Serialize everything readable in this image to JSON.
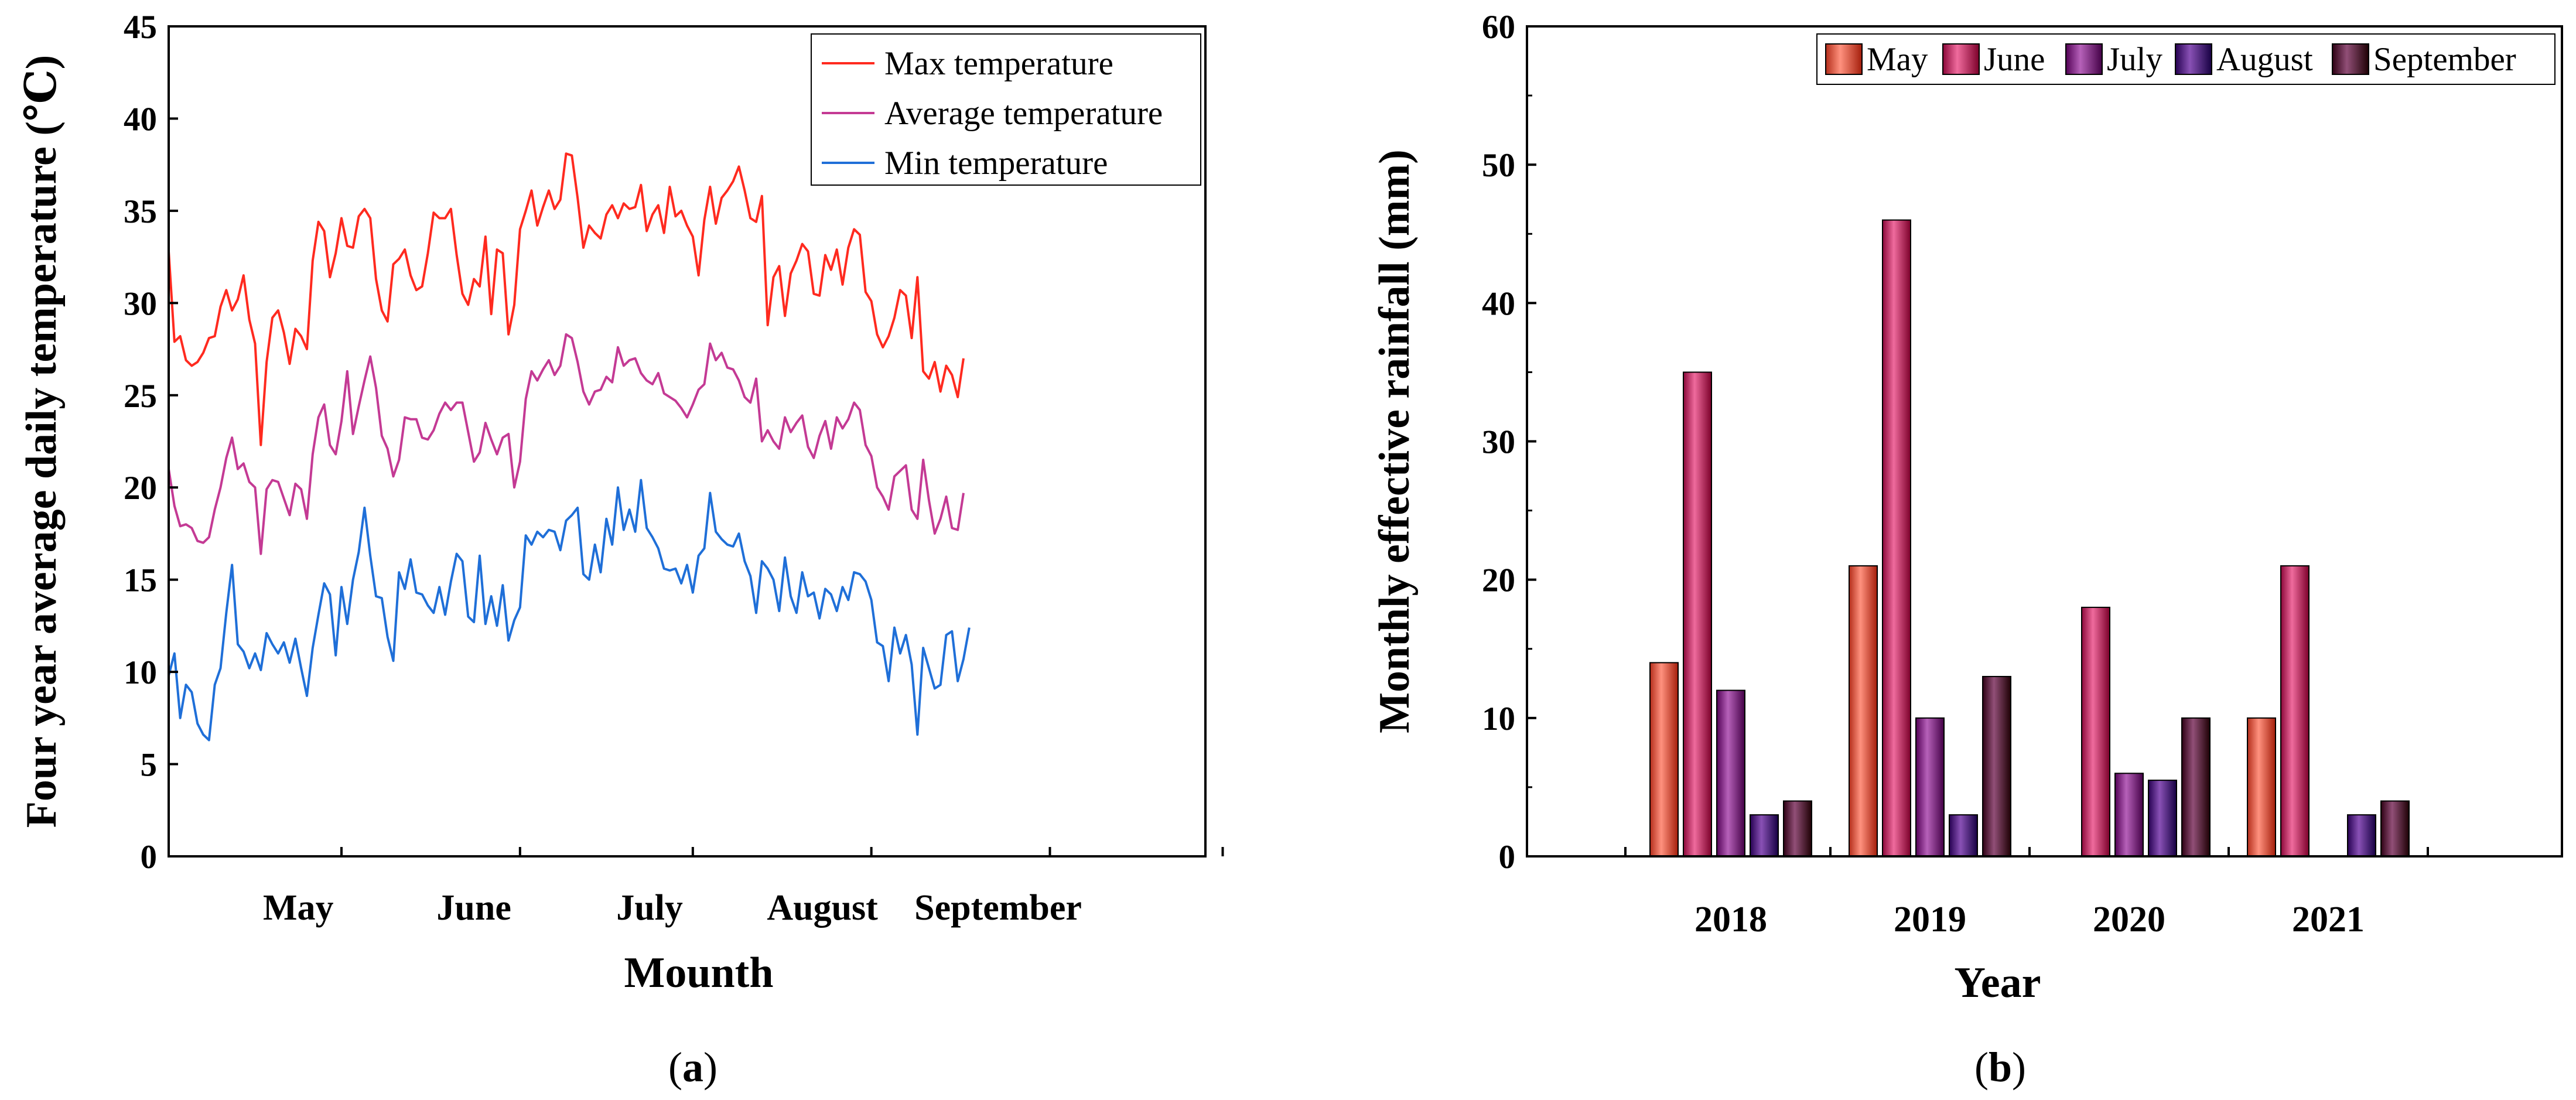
{
  "panels": {
    "a": {
      "caption_label": "a"
    },
    "b": {
      "caption_label": "b"
    }
  },
  "chart_data": [
    {
      "id": "a",
      "type": "line",
      "title": "",
      "xlabel": "Mounth",
      "ylabel": "Four year average daily temperature (℃)",
      "ylim": [
        0,
        45
      ],
      "yticks": [
        0,
        5,
        10,
        15,
        20,
        25,
        30,
        35,
        40,
        45
      ],
      "xlim": [
        0,
        180
      ],
      "x_month_labels": [
        "May",
        "June",
        "July",
        "August",
        "September"
      ],
      "x_month_positions": [
        22.5,
        53,
        83.5,
        113.5,
        144
      ],
      "x_minor_ticks": [
        30,
        61,
        91,
        122,
        153,
        183
      ],
      "legend": {
        "placement": "top-right",
        "entries": [
          "Max temperature",
          "Average temperature",
          "Min temperature"
        ]
      },
      "colors": {
        "max": "#ff2a1f",
        "avg": "#c43a94",
        "min": "#1f6fd8"
      },
      "series": [
        {
          "name": "Max temperature",
          "values": [
            32.8,
            27.9,
            28.2,
            26.9,
            26.6,
            26.8,
            27.3,
            28.1,
            28.2,
            29.8,
            30.7,
            29.6,
            30.2,
            31.5,
            29.1,
            27.8,
            22.3,
            26.8,
            29.2,
            29.6,
            28.4,
            26.7,
            28.6,
            28.2,
            27.5,
            32.3,
            34.4,
            33.9,
            31.4,
            32.7,
            34.6,
            33.1,
            33.0,
            34.7,
            35.1,
            34.6,
            31.3,
            29.6,
            29.0,
            32.1,
            32.4,
            32.9,
            31.5,
            30.7,
            30.9,
            32.7,
            34.9,
            34.6,
            34.6,
            35.1,
            32.6,
            30.5,
            29.9,
            31.3,
            30.9,
            33.6,
            29.4,
            32.9,
            32.7,
            28.3,
            29.9,
            34.0,
            35.0,
            36.1,
            34.2,
            35.2,
            36.1,
            35.1,
            35.6,
            38.1,
            38.0,
            35.7,
            33.0,
            34.2,
            33.8,
            33.5,
            34.8,
            35.3,
            34.6,
            35.4,
            35.1,
            35.2,
            36.4,
            33.9,
            34.8,
            35.3,
            33.8,
            36.3,
            34.7,
            35.0,
            34.2,
            33.6,
            31.5,
            34.5,
            36.3,
            34.3,
            35.7,
            36.1,
            36.6,
            37.4,
            36.1,
            34.6,
            34.4,
            35.8,
            28.8,
            31.4,
            32.0,
            29.3,
            31.6,
            32.3,
            33.2,
            32.8,
            30.5,
            30.4,
            32.6,
            31.8,
            32.9,
            31.0,
            33.0,
            34.0,
            33.7,
            30.6,
            30.1,
            28.3,
            27.6,
            28.2,
            29.2,
            30.7,
            30.4,
            28.1,
            31.4,
            26.3,
            25.9,
            26.8,
            25.2,
            26.6,
            26.1,
            24.9,
            27.0
          ]
        },
        {
          "name": "Average temperature",
          "values": [
            21.0,
            19.0,
            17.9,
            18.0,
            17.8,
            17.1,
            17.0,
            17.3,
            18.8,
            20.0,
            21.6,
            22.7,
            21.0,
            21.3,
            20.3,
            20.0,
            16.4,
            19.9,
            20.4,
            20.3,
            19.4,
            18.5,
            20.2,
            19.9,
            18.3,
            21.8,
            23.8,
            24.5,
            22.3,
            21.8,
            23.6,
            26.3,
            22.9,
            24.4,
            25.8,
            27.1,
            25.4,
            22.8,
            22.1,
            20.6,
            21.5,
            23.8,
            23.7,
            23.7,
            22.7,
            22.6,
            23.1,
            24.0,
            24.6,
            24.2,
            24.6,
            24.6,
            23.0,
            21.4,
            21.9,
            23.5,
            22.6,
            21.8,
            22.7,
            22.9,
            20.0,
            21.4,
            24.8,
            26.3,
            25.8,
            26.4,
            26.9,
            26.1,
            26.6,
            28.3,
            28.1,
            26.8,
            25.2,
            24.5,
            25.2,
            25.3,
            26.0,
            25.7,
            27.6,
            26.6,
            26.9,
            27.0,
            26.2,
            25.8,
            25.6,
            26.2,
            25.1,
            24.9,
            24.7,
            24.3,
            23.8,
            24.5,
            25.3,
            25.6,
            27.8,
            26.9,
            27.3,
            26.5,
            26.4,
            25.8,
            24.9,
            24.6,
            25.9,
            22.5,
            23.1,
            22.5,
            22.1,
            23.8,
            23.0,
            23.5,
            23.9,
            22.2,
            21.6,
            22.8,
            23.6,
            22.1,
            23.8,
            23.2,
            23.7,
            24.6,
            24.2,
            22.3,
            21.7,
            20.0,
            19.5,
            18.8,
            20.6,
            20.9,
            21.2,
            18.8,
            18.3,
            21.5,
            19.3,
            17.5,
            18.3,
            19.5,
            17.8,
            17.7,
            19.7
          ]
        },
        {
          "name": "Min temperature",
          "values": [
            9.8,
            11.0,
            7.5,
            9.3,
            8.9,
            7.2,
            6.6,
            6.3,
            9.3,
            10.2,
            13.2,
            15.8,
            11.5,
            11.1,
            10.2,
            11.0,
            10.1,
            12.1,
            11.5,
            11.0,
            11.6,
            10.5,
            11.8,
            10.2,
            8.7,
            11.3,
            13.1,
            14.8,
            14.2,
            10.9,
            14.6,
            12.6,
            15.0,
            16.5,
            18.9,
            16.3,
            14.1,
            14.0,
            11.9,
            10.6,
            15.4,
            14.5,
            16.1,
            14.3,
            14.2,
            13.6,
            13.2,
            14.6,
            13.1,
            14.9,
            16.4,
            16.0,
            13.0,
            12.7,
            16.3,
            12.6,
            14.1,
            12.5,
            14.7,
            11.7,
            12.8,
            13.5,
            17.4,
            16.9,
            17.6,
            17.3,
            17.7,
            17.6,
            16.6,
            18.2,
            18.5,
            18.9,
            15.3,
            15.0,
            16.9,
            15.4,
            18.3,
            16.9,
            20.0,
            17.7,
            18.8,
            17.6,
            20.4,
            17.8,
            17.3,
            16.7,
            15.6,
            15.5,
            15.6,
            14.8,
            15.8,
            14.3,
            16.3,
            16.7,
            19.7,
            17.6,
            17.2,
            16.9,
            16.8,
            17.5,
            16.0,
            15.2,
            13.2,
            16.0,
            15.6,
            15.0,
            13.3,
            16.2,
            14.1,
            13.2,
            15.4,
            14.1,
            14.3,
            12.9,
            14.5,
            14.2,
            13.3,
            14.6,
            13.9,
            15.4,
            15.3,
            14.9,
            13.9,
            11.6,
            11.4,
            9.5,
            12.4,
            11.0,
            12.0,
            10.4,
            6.6,
            11.3,
            10.2,
            9.1,
            9.3,
            12.0,
            12.2,
            9.5,
            10.7,
            12.4
          ]
        }
      ]
    },
    {
      "id": "b",
      "type": "bar",
      "title": "",
      "xlabel": "Year",
      "ylabel": "Monthly effective rainfall (mm)",
      "ylim": [
        0,
        60
      ],
      "yticks": [
        0,
        10,
        20,
        30,
        40,
        50,
        60
      ],
      "categories": [
        "2018",
        "2019",
        "2020",
        "2021"
      ],
      "legend": {
        "placement": "top-right"
      },
      "series": [
        {
          "name": "May",
          "color": "#e05a47",
          "values": [
            14,
            21,
            0,
            10
          ]
        },
        {
          "name": "June",
          "color": "#b83466",
          "values": [
            35,
            46,
            18,
            21
          ]
        },
        {
          "name": "July",
          "color": "#7f2a82",
          "values": [
            12,
            10,
            6,
            0
          ]
        },
        {
          "name": "August",
          "color": "#521a7e",
          "values": [
            3,
            3,
            5.5,
            3
          ]
        },
        {
          "name": "September",
          "color": "#5a1840",
          "values": [
            4,
            13,
            10,
            4
          ]
        }
      ]
    }
  ]
}
